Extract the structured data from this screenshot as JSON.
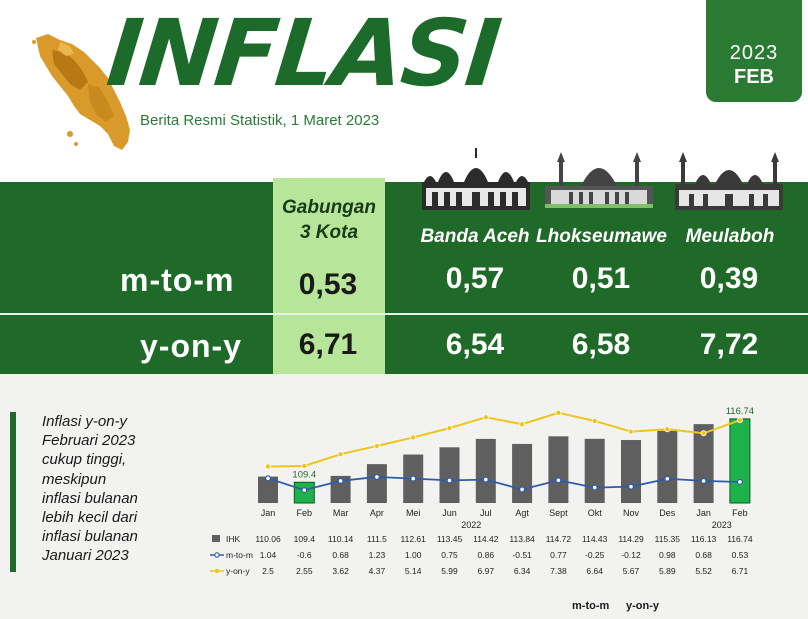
{
  "header": {
    "title": "INFLASI",
    "subtitle": "Berita Resmi Statistik, 1 Maret 2023",
    "year": "2023",
    "month": "FEB"
  },
  "table": {
    "combined_header_line1": "Gabungan",
    "combined_header_line2": "3 Kota",
    "cities": [
      "Banda Aceh",
      "Lhokseumawe",
      "Meulaboh"
    ],
    "rows": [
      {
        "label": "m-to-m",
        "combined": "0,53",
        "values": [
          "0,57",
          "0,51",
          "0,39"
        ]
      },
      {
        "label": "y-on-y",
        "combined": "6,71",
        "values": [
          "6,54",
          "6,58",
          "7,72"
        ]
      }
    ]
  },
  "note": {
    "lines": [
      "Inflasi y-on-y",
      "Februari 2023",
      "cukup tinggi,",
      "meskipun",
      "inflasi bulanan",
      "lebih kecil dari",
      "inflasi bulanan",
      "Januari 2023"
    ]
  },
  "footer_tags": [
    "m-to-m",
    "y-on-y"
  ],
  "colors": {
    "green_dark": "#1f6a29",
    "green_bright": "#1db34a",
    "gray_bar": "#5f5f5f",
    "mtom_line": "#2f5bab",
    "yony_line": "#f0c419",
    "highlight": "#b7e59a"
  },
  "chart_data": {
    "type": "bar",
    "categories": [
      "Jan",
      "Feb",
      "Mar",
      "Apr",
      "Mei",
      "Jun",
      "Jul",
      "Agt",
      "Sept",
      "Okt",
      "Nov",
      "Des",
      "Jan",
      "Feb"
    ],
    "year_labels": [
      "2022",
      "2023"
    ],
    "highlight_labels": [
      "109.4",
      "116.74"
    ],
    "series": [
      {
        "name": "IHK",
        "values": [
          110.06,
          109.4,
          110.14,
          111.5,
          112.61,
          113.45,
          114.42,
          113.84,
          114.72,
          114.43,
          114.29,
          115.35,
          116.13,
          116.74
        ]
      },
      {
        "name": "m-to-m",
        "values": [
          1.04,
          -0.6,
          0.68,
          1.23,
          1.0,
          0.75,
          0.86,
          -0.51,
          0.77,
          -0.25,
          -0.12,
          0.98,
          0.68,
          0.53
        ]
      },
      {
        "name": "y-on-y",
        "values": [
          2.5,
          2.55,
          3.62,
          4.37,
          5.14,
          5.99,
          6.97,
          6.34,
          7.38,
          6.64,
          5.67,
          5.89,
          5.52,
          6.71
        ]
      }
    ],
    "table_values": [
      [
        "110.06",
        "109.4",
        "110.14",
        "111.5",
        "112.61",
        "113.45",
        "114.42",
        "113.84",
        "114.72",
        "114.43",
        "114.29",
        "115.35",
        "116.13",
        "116.74"
      ],
      [
        "1.04",
        "-0.6",
        "0.68",
        "1.23",
        "1.00",
        "0.75",
        "0.86",
        "-0.51",
        "0.77",
        "-0.25",
        "-0.12",
        "0.98",
        "0.68",
        "0.53"
      ],
      [
        "2.5",
        "2.55",
        "3.62",
        "4.37",
        "5.14",
        "5.99",
        "6.97",
        "6.34",
        "7.38",
        "6.64",
        "5.67",
        "5.89",
        "5.52",
        "6.71"
      ]
    ],
    "ylim": [
      107,
      118
    ]
  }
}
